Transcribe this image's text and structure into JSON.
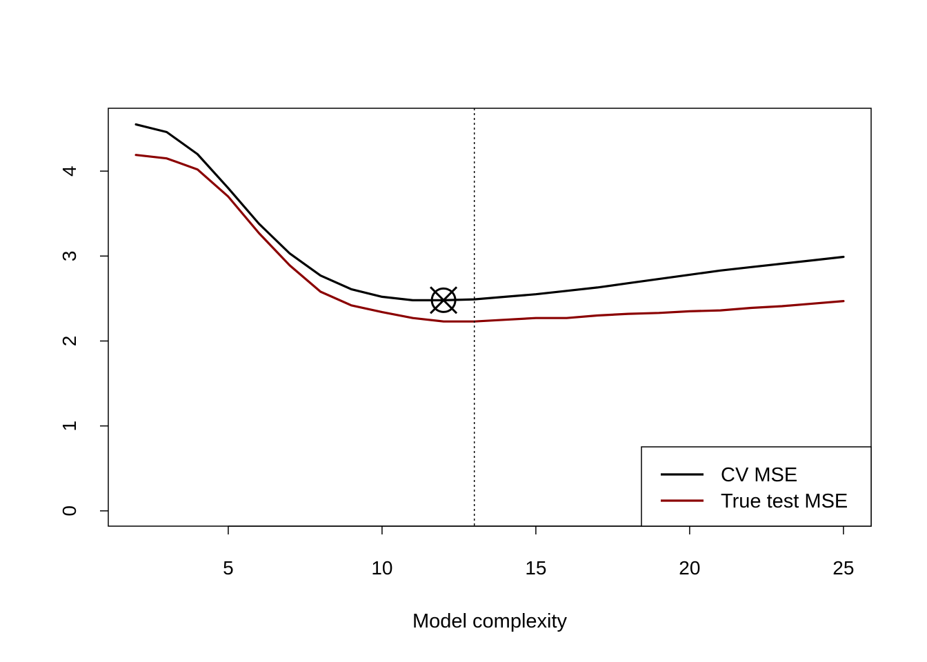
{
  "chart_data": {
    "type": "line",
    "title": "",
    "xlabel": "Model complexity",
    "ylabel": "",
    "xlim": [
      1.1,
      25.9
    ],
    "ylim": [
      -0.18,
      4.74
    ],
    "xticks": [
      5,
      10,
      15,
      20,
      25
    ],
    "yticks": [
      0,
      1,
      2,
      3,
      4
    ],
    "grid": false,
    "legend_position": "bottom-right",
    "x": [
      2,
      3,
      4,
      5,
      6,
      7,
      8,
      9,
      10,
      11,
      12,
      13,
      14,
      15,
      16,
      17,
      18,
      19,
      20,
      21,
      22,
      23,
      24,
      25
    ],
    "series": [
      {
        "name": "CV MSE",
        "color": "#000000",
        "values": [
          4.55,
          4.46,
          4.2,
          3.8,
          3.38,
          3.03,
          2.77,
          2.61,
          2.52,
          2.48,
          2.48,
          2.49,
          2.52,
          2.55,
          2.59,
          2.63,
          2.68,
          2.73,
          2.78,
          2.83,
          2.87,
          2.91,
          2.95,
          2.99
        ]
      },
      {
        "name": "True test MSE",
        "color": "#8b0000",
        "values": [
          4.19,
          4.15,
          4.02,
          3.7,
          3.27,
          2.89,
          2.58,
          2.42,
          2.34,
          2.27,
          2.23,
          2.23,
          2.25,
          2.27,
          2.27,
          2.3,
          2.32,
          2.33,
          2.35,
          2.36,
          2.39,
          2.41,
          2.44,
          2.47
        ]
      }
    ],
    "marker": {
      "x": 12,
      "y": 2.48,
      "shape": "circled-x"
    },
    "vline": {
      "x": 13,
      "style": "dotted"
    }
  }
}
